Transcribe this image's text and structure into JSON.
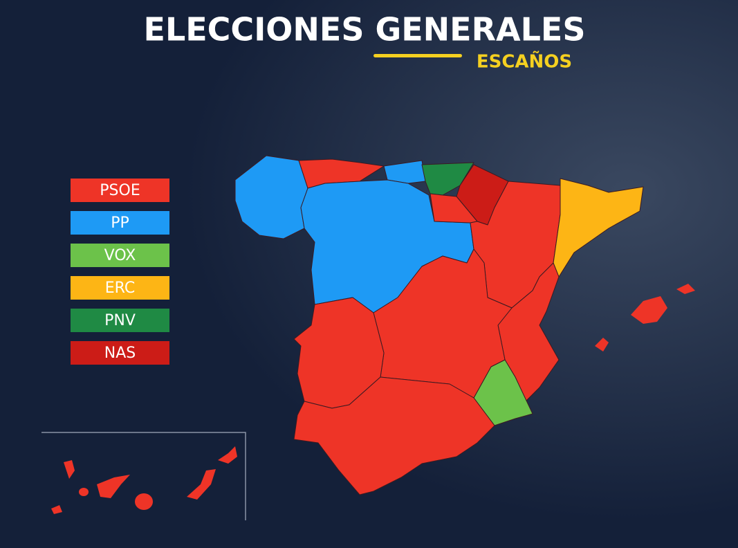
{
  "header": {
    "title": "ELECCIONES GENERALES",
    "subtitle": "ESCAÑOS"
  },
  "legend": [
    {
      "label": "PSOE",
      "color": "#ee3427"
    },
    {
      "label": "PP",
      "color": "#1e9af5"
    },
    {
      "label": "VOX",
      "color": "#6cc24a"
    },
    {
      "label": "ERC",
      "color": "#fdb515"
    },
    {
      "label": "PNV",
      "color": "#1f8a44"
    },
    {
      "label": "NAS",
      "color": "#cc1c17"
    }
  ]
}
